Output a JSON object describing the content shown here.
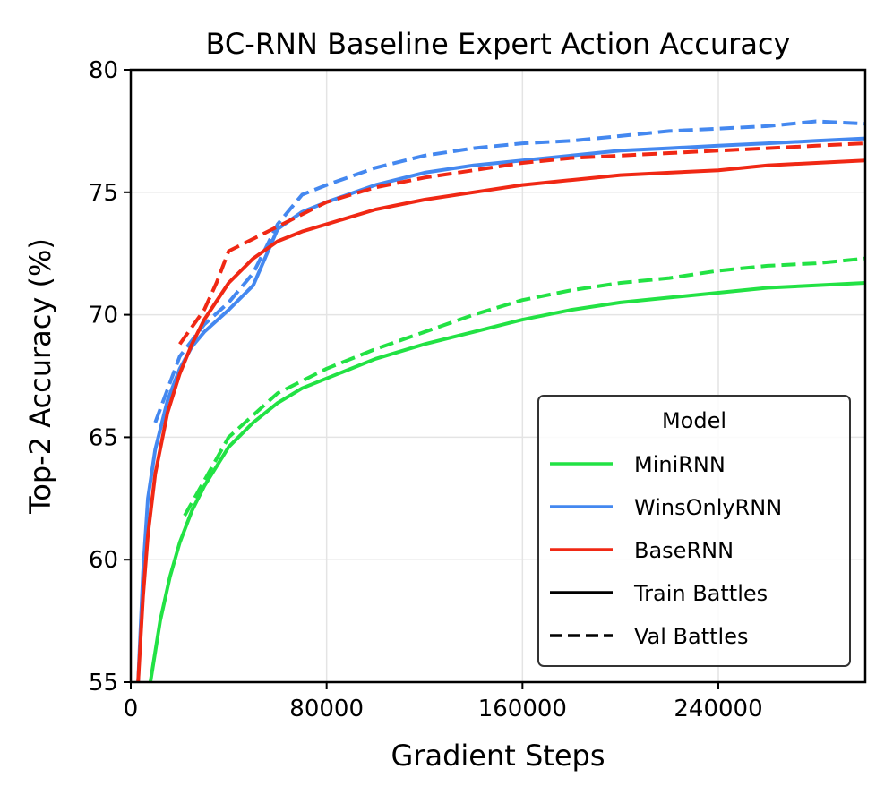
{
  "chart_data": {
    "type": "line",
    "title": "BC-RNN Baseline Expert Action Accuracy",
    "xlabel": "Gradient Steps",
    "ylabel": "Top-2 Accuracy (%)",
    "xlim": [
      0,
      300000
    ],
    "ylim": [
      55,
      80
    ],
    "xticks": [
      0,
      80000,
      160000,
      240000
    ],
    "yticks": [
      55,
      60,
      65,
      70,
      75,
      80
    ],
    "grid": true,
    "legend": {
      "title": "Model",
      "placement": "lower-right",
      "entries": [
        {
          "label": "MiniRNN",
          "color": "#22e244",
          "style": "solid"
        },
        {
          "label": "WinsOnlyRNN",
          "color": "#4488f0",
          "style": "solid"
        },
        {
          "label": "BaseRNN",
          "color": "#f02814",
          "style": "solid"
        },
        {
          "label": "Train Battles",
          "color": "#000000",
          "style": "solid"
        },
        {
          "label": "Val Battles",
          "color": "#000000",
          "style": "dashed"
        }
      ]
    },
    "series": [
      {
        "name": "MiniRNN",
        "split": "Train Battles",
        "color": "#22e244",
        "style": "solid",
        "x": [
          8000,
          12000,
          16000,
          20000,
          25000,
          30000,
          40000,
          50000,
          60000,
          70000,
          80000,
          100000,
          120000,
          140000,
          160000,
          180000,
          200000,
          220000,
          240000,
          260000,
          280000,
          300000
        ],
        "y": [
          55,
          57.5,
          59.3,
          60.7,
          62,
          63,
          64.6,
          65.6,
          66.4,
          67,
          67.4,
          68.2,
          68.8,
          69.3,
          69.8,
          70.2,
          70.5,
          70.7,
          70.9,
          71.1,
          71.2,
          71.3
        ]
      },
      {
        "name": "MiniRNN",
        "split": "Val Battles",
        "color": "#22e244",
        "style": "dashed",
        "x": [
          22000,
          40000,
          60000,
          80000,
          100000,
          120000,
          140000,
          160000,
          180000,
          200000,
          220000,
          240000,
          260000,
          280000,
          300000
        ],
        "y": [
          61.8,
          65,
          66.8,
          67.8,
          68.6,
          69.3,
          70,
          70.6,
          71,
          71.3,
          71.5,
          71.8,
          72,
          72.1,
          72.3
        ]
      },
      {
        "name": "WinsOnlyRNN",
        "split": "Train Battles",
        "color": "#4488f0",
        "style": "solid",
        "x": [
          3000,
          5000,
          7000,
          10000,
          15000,
          20000,
          25000,
          30000,
          40000,
          50000,
          60000,
          70000,
          80000,
          100000,
          120000,
          140000,
          160000,
          180000,
          200000,
          220000,
          240000,
          260000,
          280000,
          300000
        ],
        "y": [
          55,
          59.5,
          62.5,
          64.5,
          66.5,
          67.8,
          68.7,
          69.3,
          70.2,
          71.2,
          73.5,
          74.2,
          74.6,
          75.3,
          75.8,
          76.1,
          76.3,
          76.5,
          76.7,
          76.8,
          76.9,
          77,
          77.1,
          77.2
        ]
      },
      {
        "name": "WinsOnlyRNN",
        "split": "Val Battles",
        "color": "#4488f0",
        "style": "dashed",
        "x": [
          10000,
          20000,
          30000,
          40000,
          50000,
          60000,
          70000,
          80000,
          100000,
          120000,
          140000,
          160000,
          180000,
          200000,
          220000,
          240000,
          260000,
          280000,
          300000
        ],
        "y": [
          65.6,
          68.3,
          69.6,
          70.5,
          71.7,
          73.7,
          74.9,
          75.3,
          76,
          76.5,
          76.8,
          77,
          77.1,
          77.3,
          77.5,
          77.6,
          77.7,
          77.9,
          77.8
        ]
      },
      {
        "name": "BaseRNN",
        "split": "Train Battles",
        "color": "#f02814",
        "style": "solid",
        "x": [
          3000,
          5000,
          7000,
          10000,
          15000,
          20000,
          25000,
          30000,
          40000,
          50000,
          60000,
          70000,
          80000,
          100000,
          120000,
          140000,
          160000,
          180000,
          200000,
          220000,
          240000,
          260000,
          280000,
          300000
        ],
        "y": [
          55,
          58.5,
          61,
          63.5,
          66,
          67.6,
          68.8,
          69.8,
          71.3,
          72.3,
          73,
          73.4,
          73.7,
          74.3,
          74.7,
          75,
          75.3,
          75.5,
          75.7,
          75.8,
          75.9,
          76.1,
          76.2,
          76.3
        ]
      },
      {
        "name": "BaseRNN",
        "split": "Val Battles",
        "color": "#f02814",
        "style": "dashed",
        "x": [
          20000,
          25000,
          30000,
          35000,
          40000,
          50000,
          60000,
          70000,
          80000,
          100000,
          120000,
          140000,
          160000,
          180000,
          200000,
          220000,
          240000,
          260000,
          280000,
          300000
        ],
        "y": [
          68.8,
          69.5,
          70.2,
          71.3,
          72.6,
          73.1,
          73.6,
          74.1,
          74.6,
          75.2,
          75.6,
          75.9,
          76.2,
          76.4,
          76.5,
          76.6,
          76.7,
          76.8,
          76.9,
          77
        ]
      }
    ]
  }
}
